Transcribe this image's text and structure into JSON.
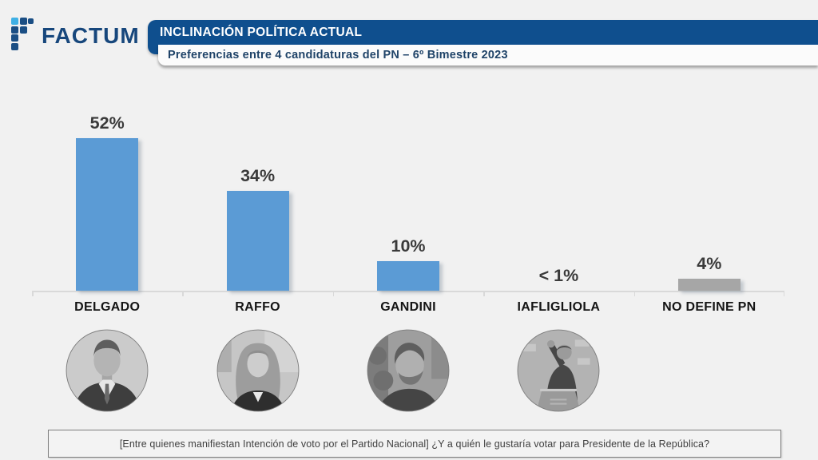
{
  "brand": {
    "name": "FACTUM",
    "colors": {
      "tile_light": "#3FB0E5",
      "tile_dark": "#1A4E84",
      "wordmark": "#17477C"
    }
  },
  "header": {
    "title": "INCLINACIÓN POLÍTICA ACTUAL",
    "subtitle": "Preferencias entre 4 candidaturas del PN – 6º Bimestre 2023",
    "bar_color": "#0F4F8E"
  },
  "chart_data": {
    "type": "bar",
    "title": "Preferencias entre 4 candidaturas del PN – 6º Bimestre 2023",
    "categories": [
      "DELGADO",
      "RAFFO",
      "GANDINI",
      "IAFLIGLIOLA",
      "NO DEFINE PN"
    ],
    "values": [
      52,
      34,
      10,
      0.5,
      4
    ],
    "value_labels": [
      "52%",
      "34%",
      "10%",
      "< 1%",
      "4%"
    ],
    "unit": "%",
    "bar_colors": [
      "#5B9BD5",
      "#5B9BD5",
      "#5B9BD5",
      "#5B9BD5",
      "#A6A6A6"
    ],
    "photos": [
      "delgado-portrait",
      "raffo-portrait",
      "gandini-portrait",
      "iafligliola-portrait",
      null
    ],
    "ylim": [
      0,
      57
    ],
    "grid": false,
    "legend": false,
    "baseline_color": "#D9D9D9"
  },
  "footer": {
    "note": "[Entre quienes manifiestan Intención de voto por el Partido Nacional] ¿Y a quién le gustaría votar para Presidente de la República?"
  }
}
